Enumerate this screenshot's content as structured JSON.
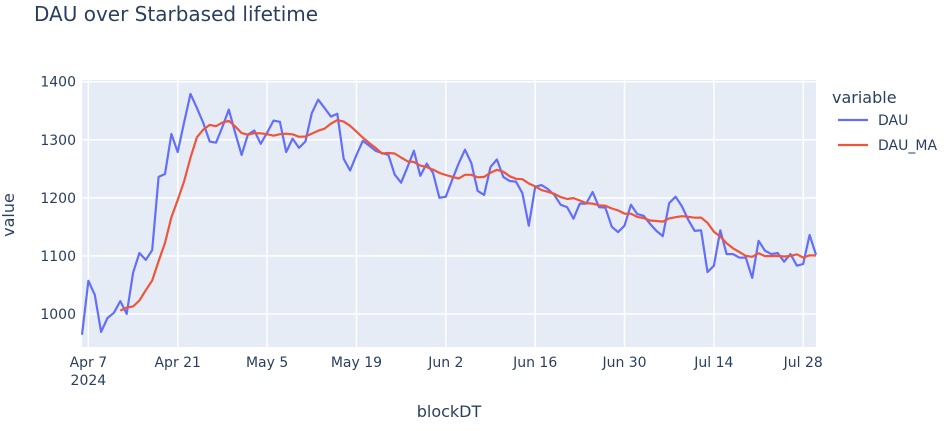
{
  "chart_data": {
    "type": "line",
    "title": "DAU over Starbased lifetime",
    "xlabel": "blockDT",
    "ylabel": "value",
    "xlim": [
      "2024-04-06",
      "2024-07-30"
    ],
    "ylim": [
      943,
      1403
    ],
    "grid": true,
    "yticks": [
      1000,
      1100,
      1200,
      1300,
      1400
    ],
    "xticks": [
      {
        "date": "2024-04-07",
        "label": "Apr 7",
        "sublabel": "2024"
      },
      {
        "date": "2024-04-21",
        "label": "Apr 21"
      },
      {
        "date": "2024-05-05",
        "label": "May 5"
      },
      {
        "date": "2024-05-19",
        "label": "May 19"
      },
      {
        "date": "2024-06-02",
        "label": "Jun 2"
      },
      {
        "date": "2024-06-16",
        "label": "Jun 16"
      },
      {
        "date": "2024-06-30",
        "label": "Jun 30"
      },
      {
        "date": "2024-07-14",
        "label": "Jul 14"
      },
      {
        "date": "2024-07-28",
        "label": "Jul 28"
      }
    ],
    "legend": {
      "title": "variable",
      "placement": "right"
    },
    "x": [
      "2024-04-06",
      "2024-04-07",
      "2024-04-08",
      "2024-04-09",
      "2024-04-10",
      "2024-04-11",
      "2024-04-12",
      "2024-04-13",
      "2024-04-14",
      "2024-04-15",
      "2024-04-16",
      "2024-04-17",
      "2024-04-18",
      "2024-04-19",
      "2024-04-20",
      "2024-04-21",
      "2024-04-22",
      "2024-04-23",
      "2024-04-24",
      "2024-04-25",
      "2024-04-26",
      "2024-04-27",
      "2024-04-28",
      "2024-04-29",
      "2024-04-30",
      "2024-05-01",
      "2024-05-02",
      "2024-05-03",
      "2024-05-04",
      "2024-05-05",
      "2024-05-06",
      "2024-05-07",
      "2024-05-08",
      "2024-05-09",
      "2024-05-10",
      "2024-05-11",
      "2024-05-12",
      "2024-05-13",
      "2024-05-14",
      "2024-05-15",
      "2024-05-16",
      "2024-05-17",
      "2024-05-18",
      "2024-05-19",
      "2024-05-20",
      "2024-05-21",
      "2024-05-22",
      "2024-05-23",
      "2024-05-24",
      "2024-05-25",
      "2024-05-26",
      "2024-05-27",
      "2024-05-28",
      "2024-05-29",
      "2024-05-30",
      "2024-05-31",
      "2024-06-01",
      "2024-06-02",
      "2024-06-03",
      "2024-06-04",
      "2024-06-05",
      "2024-06-06",
      "2024-06-07",
      "2024-06-08",
      "2024-06-09",
      "2024-06-10",
      "2024-06-11",
      "2024-06-12",
      "2024-06-13",
      "2024-06-14",
      "2024-06-15",
      "2024-06-16",
      "2024-06-17",
      "2024-06-18",
      "2024-06-19",
      "2024-06-20",
      "2024-06-21",
      "2024-06-22",
      "2024-06-23",
      "2024-06-24",
      "2024-06-25",
      "2024-06-26",
      "2024-06-27",
      "2024-06-28",
      "2024-06-29",
      "2024-06-30",
      "2024-07-01",
      "2024-07-02",
      "2024-07-03",
      "2024-07-04",
      "2024-07-05",
      "2024-07-06",
      "2024-07-07",
      "2024-07-08",
      "2024-07-09",
      "2024-07-10",
      "2024-07-11",
      "2024-07-12",
      "2024-07-13",
      "2024-07-14",
      "2024-07-15",
      "2024-07-16",
      "2024-07-17",
      "2024-07-18",
      "2024-07-19",
      "2024-07-20",
      "2024-07-21",
      "2024-07-22",
      "2024-07-23",
      "2024-07-24",
      "2024-07-25",
      "2024-07-26",
      "2024-07-27",
      "2024-07-28",
      "2024-07-29",
      "2024-07-30"
    ],
    "series": [
      {
        "name": "DAU",
        "color": "#636efa",
        "values": [
          964,
          1057,
          1033,
          969,
          993,
          1002,
          1022,
          1000,
          1071,
          1105,
          1093,
          1110,
          1236,
          1241,
          1310,
          1279,
          1330,
          1379,
          1355,
          1329,
          1297,
          1295,
          1322,
          1352,
          1312,
          1274,
          1309,
          1316,
          1293,
          1312,
          1333,
          1331,
          1279,
          1302,
          1286,
          1297,
          1346,
          1369,
          1355,
          1340,
          1345,
          1267,
          1247,
          1274,
          1298,
          1290,
          1281,
          1277,
          1274,
          1240,
          1226,
          1253,
          1281,
          1238,
          1259,
          1243,
          1200,
          1202,
          1231,
          1259,
          1283,
          1260,
          1212,
          1205,
          1253,
          1266,
          1236,
          1229,
          1228,
          1208,
          1152,
          1219,
          1222,
          1215,
          1205,
          1188,
          1184,
          1164,
          1190,
          1190,
          1210,
          1184,
          1183,
          1150,
          1141,
          1152,
          1188,
          1172,
          1169,
          1155,
          1143,
          1134,
          1191,
          1202,
          1185,
          1162,
          1143,
          1144,
          1072,
          1083,
          1144,
          1103,
          1103,
          1097,
          1097,
          1062,
          1126,
          1109,
          1103,
          1105,
          1090,
          1103,
          1083,
          1086,
          1136,
          1102
        ]
      },
      {
        "name": "DAU_MA",
        "color": "#ef553b",
        "values": [
          null,
          null,
          null,
          null,
          null,
          null,
          1005.7,
          1010.9,
          1012.9,
          1023.1,
          1040.9,
          1057.6,
          1091.0,
          1122.3,
          1166.6,
          1196.3,
          1228.4,
          1269.3,
          1304.3,
          1317.6,
          1325.6,
          1323.4,
          1329.6,
          1332.7,
          1323.1,
          1311.6,
          1308.7,
          1311.4,
          1311.1,
          1309.7,
          1307.0,
          1309.7,
          1310.4,
          1309.4,
          1305.1,
          1305.7,
          1310.6,
          1315.7,
          1319.1,
          1327.9,
          1334.0,
          1331.3,
          1324.1,
          1313.9,
          1303.7,
          1294.4,
          1286.0,
          1276.3,
          1277.3,
          1276.3,
          1269.4,
          1263.0,
          1261.7,
          1255.6,
          1253.0,
          1248.6,
          1242.9,
          1239.4,
          1236.3,
          1233.1,
          1239.6,
          1239.7,
          1235.3,
          1236.0,
          1243.3,
          1248.3,
          1245.0,
          1237.3,
          1232.7,
          1232.1,
          1224.6,
          1219.7,
          1213.4,
          1210.4,
          1207.0,
          1201.3,
          1197.9,
          1199.6,
          1195.4,
          1190.9,
          1190.1,
          1187.1,
          1186.4,
          1181.6,
          1178.3,
          1172.9,
          1172.6,
          1167.1,
          1165.0,
          1161.0,
          1160.0,
          1159.0,
          1164.6,
          1166.6,
          1168.4,
          1167.4,
          1165.7,
          1165.9,
          1157.0,
          1141.6,
          1133.3,
          1121.6,
          1113.1,
          1106.6,
          1099.9,
          1098.4,
          1104.6,
          1099.6,
          1099.6,
          1099.9,
          1098.9,
          1099.7,
          1102.7,
          1097.0,
          1100.9,
          1100.7
        ]
      }
    ]
  }
}
